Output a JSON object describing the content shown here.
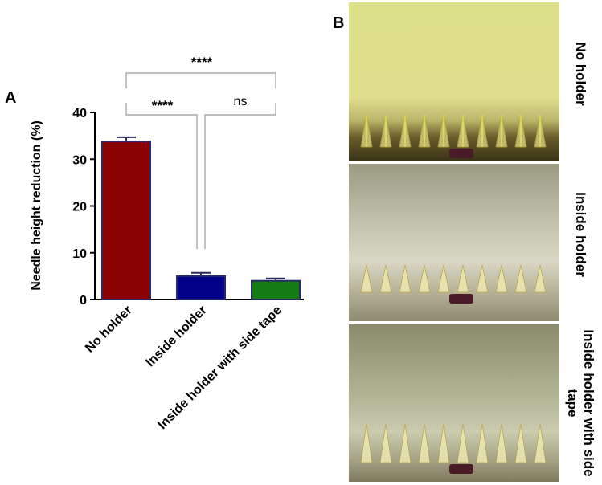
{
  "chart_data": {
    "type": "bar",
    "panel_label": "A",
    "y_label": "Needle height reduction (%)",
    "categories": [
      "No holder",
      "Inside holder",
      "Inside holder with side tape"
    ],
    "values": [
      33.8,
      5.0,
      4.0
    ],
    "errors": [
      0.9,
      0.7,
      0.5
    ],
    "colors": [
      "#8b0000",
      "#00008b",
      "#137d13"
    ],
    "ylim": [
      0,
      40
    ],
    "yticks": [
      0,
      10,
      20,
      30,
      40
    ],
    "annotations": [
      "****",
      "****",
      "ns"
    ]
  },
  "panel_b": {
    "label": "B",
    "images": [
      "No holder",
      "Inside holder",
      "Inside holder with side tape"
    ]
  }
}
